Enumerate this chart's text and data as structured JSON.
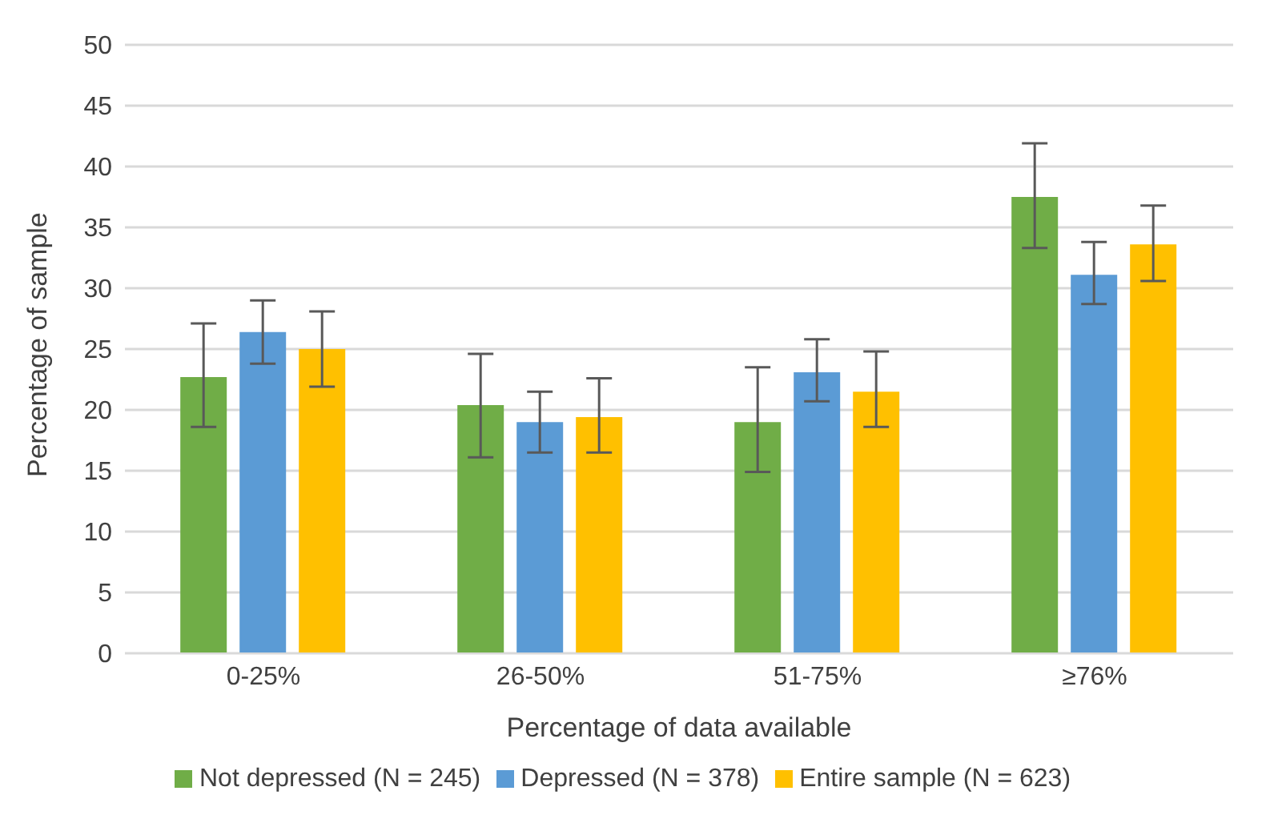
{
  "chart_data": {
    "type": "bar",
    "xlabel": "Percentage of data available",
    "ylabel": "Percentage of sample",
    "categories": [
      "0-25%",
      "26-50%",
      "51-75%",
      "≥76%"
    ],
    "series": [
      {
        "name": "Not depressed (N = 245)",
        "color": "#70ad47",
        "values": [
          22.7,
          20.4,
          19.0,
          37.5
        ],
        "errors": [
          [
            18.6,
            27.1
          ],
          [
            16.1,
            24.6
          ],
          [
            14.9,
            23.5
          ],
          [
            33.3,
            41.9
          ]
        ]
      },
      {
        "name": "Depressed (N = 378)",
        "color": "#5b9bd5",
        "values": [
          26.4,
          19.0,
          23.1,
          31.1
        ],
        "errors": [
          [
            23.8,
            29.0
          ],
          [
            16.5,
            21.5
          ],
          [
            20.7,
            25.8
          ],
          [
            28.7,
            33.8
          ]
        ]
      },
      {
        "name": "Entire sample (N = 623)",
        "color": "#ffc000",
        "values": [
          25.0,
          19.4,
          21.5,
          33.6
        ],
        "errors": [
          [
            21.9,
            28.1
          ],
          [
            16.5,
            22.6
          ],
          [
            18.6,
            24.8
          ],
          [
            30.6,
            36.8
          ]
        ]
      }
    ],
    "ylim": [
      0,
      50
    ],
    "yticks": [
      0,
      5,
      10,
      15,
      20,
      25,
      30,
      35,
      40,
      45,
      50
    ],
    "grid": "y",
    "legend": "bottom"
  }
}
